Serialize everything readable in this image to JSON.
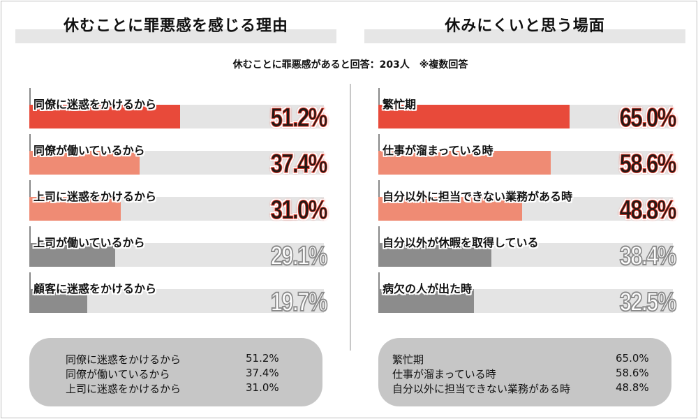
{
  "left_panel": {
    "title": "休むことに罪悪感を感じる理由"
  },
  "right_panel": {
    "title": "休みにくいと思う場面"
  },
  "subtitle": "休むことに罪悪感があると回答：203人　※複数回答",
  "colors": {
    "accent_strong": "#e84a3a",
    "accent_soft": "#ef8b74",
    "muted": "#8c8c8c",
    "track": "#e4e4e4"
  },
  "chart_data": [
    {
      "type": "bar",
      "orientation": "horizontal",
      "title": "休むことに罪悪感を感じる理由",
      "subtitle": "休むことに罪悪感があると回答：203人　※複数回答",
      "xlim": [
        0,
        100
      ],
      "unit": "%",
      "categories": [
        "同僚に迷惑をかけるから",
        "同僚が働いているから",
        "上司に迷惑をかけるから",
        "上司が働いているから",
        "顧客に迷惑をかけるから"
      ],
      "values": [
        51.2,
        37.4,
        31.0,
        29.1,
        19.7
      ],
      "value_labels": [
        "51.2%",
        "37.4%",
        "31.0%",
        "29.1%",
        "19.7%"
      ],
      "bar_colors": [
        "#e84a3a",
        "#ef8b74",
        "#ef8b74",
        "#8c8c8c",
        "#8c8c8c"
      ],
      "highlight": [
        true,
        true,
        true,
        false,
        false
      ],
      "summary": [
        {
          "label": "同僚に迷惑をかけるから",
          "value": "51.2%"
        },
        {
          "label": "同僚が働いているから",
          "value": "37.4%"
        },
        {
          "label": "上司に迷惑をかけるから",
          "value": "31.0%"
        }
      ]
    },
    {
      "type": "bar",
      "orientation": "horizontal",
      "title": "休みにくいと思う場面",
      "xlim": [
        0,
        100
      ],
      "unit": "%",
      "categories": [
        "繁忙期",
        "仕事が溜まっている時",
        "自分以外に担当できない業務がある時",
        "自分以外が休暇を取得している",
        "病欠の人が出た時"
      ],
      "values": [
        65.0,
        58.6,
        48.8,
        38.4,
        32.5
      ],
      "value_labels": [
        "65.0%",
        "58.6%",
        "48.8%",
        "38.4%",
        "32.5%"
      ],
      "bar_colors": [
        "#e84a3a",
        "#ef8b74",
        "#ef8b74",
        "#8c8c8c",
        "#8c8c8c"
      ],
      "highlight": [
        true,
        true,
        true,
        false,
        false
      ],
      "summary": [
        {
          "label": "繁忙期",
          "value": "65.0%"
        },
        {
          "label": "仕事が溜まっている時",
          "value": "58.6%"
        },
        {
          "label": "自分以外に担当できない業務がある時",
          "value": "48.8%"
        }
      ]
    }
  ]
}
